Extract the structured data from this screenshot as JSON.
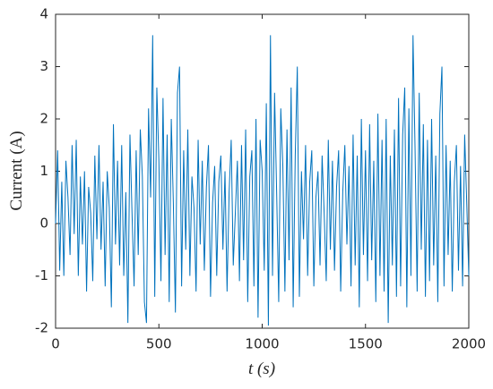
{
  "chart_data": {
    "type": "line",
    "xlabel": "t (s)",
    "ylabel": "Current (A)",
    "x": [
      0,
      10,
      20,
      30,
      40,
      50,
      60,
      70,
      80,
      90,
      100,
      110,
      120,
      130,
      140,
      150,
      160,
      170,
      180,
      190,
      200,
      210,
      220,
      230,
      240,
      250,
      260,
      270,
      280,
      290,
      300,
      310,
      320,
      330,
      340,
      350,
      360,
      370,
      380,
      390,
      400,
      410,
      420,
      430,
      440,
      450,
      460,
      470,
      480,
      490,
      500,
      510,
      520,
      530,
      540,
      550,
      560,
      570,
      580,
      590,
      600,
      610,
      620,
      630,
      640,
      650,
      660,
      670,
      680,
      690,
      700,
      710,
      720,
      730,
      740,
      750,
      760,
      770,
      780,
      790,
      800,
      810,
      820,
      830,
      840,
      850,
      860,
      870,
      880,
      890,
      900,
      910,
      920,
      930,
      940,
      950,
      960,
      970,
      980,
      990,
      1000,
      1010,
      1020,
      1030,
      1040,
      1050,
      1060,
      1070,
      1080,
      1090,
      1100,
      1110,
      1120,
      1130,
      1140,
      1150,
      1160,
      1170,
      1180,
      1190,
      1200,
      1210,
      1220,
      1230,
      1240,
      1250,
      1260,
      1270,
      1280,
      1290,
      1300,
      1310,
      1320,
      1330,
      1340,
      1350,
      1360,
      1370,
      1380,
      1390,
      1400,
      1410,
      1420,
      1430,
      1440,
      1450,
      1460,
      1470,
      1480,
      1490,
      1500,
      1510,
      1520,
      1530,
      1540,
      1550,
      1560,
      1570,
      1580,
      1590,
      1600,
      1610,
      1620,
      1630,
      1640,
      1650,
      1660,
      1670,
      1680,
      1690,
      1700,
      1710,
      1720,
      1730,
      1740,
      1750,
      1760,
      1770,
      1780,
      1790,
      1800,
      1810,
      1820,
      1830,
      1840,
      1850,
      1860,
      1870,
      1880,
      1890,
      1900,
      1910,
      1920,
      1930,
      1940,
      1950,
      1960,
      1970,
      1980,
      1990,
      2000
    ],
    "series": [
      {
        "color": "#0072bd",
        "values": [
          0,
          1.4,
          -0.9,
          0.8,
          -1.0,
          1.2,
          0.5,
          -0.6,
          1.5,
          -0.2,
          1.6,
          -1.0,
          0.9,
          -0.4,
          1.0,
          -1.3,
          0.7,
          0.2,
          -1.1,
          1.3,
          -0.3,
          1.5,
          -0.5,
          0.8,
          -1.2,
          1.0,
          0.3,
          -1.6,
          1.9,
          -0.4,
          1.2,
          -0.8,
          1.5,
          -1.0,
          0.6,
          -1.9,
          1.7,
          0.2,
          -1.2,
          1.4,
          -0.6,
          1.8,
          0.9,
          -1.5,
          -1.9,
          2.2,
          0.5,
          3.6,
          -1.4,
          2.6,
          1.2,
          -1.1,
          2.4,
          -0.6,
          1.7,
          -1.5,
          2.0,
          0.4,
          -1.7,
          2.5,
          3.0,
          -1.2,
          1.4,
          -0.5,
          1.8,
          -1.0,
          0.9,
          0.3,
          -1.3,
          1.6,
          -0.4,
          1.2,
          -0.9,
          0.7,
          1.5,
          -1.4,
          0.4,
          1.1,
          -1.0,
          0.8,
          1.3,
          -0.5,
          1.0,
          -1.3,
          0.6,
          1.6,
          -0.8,
          0.2,
          1.2,
          -1.1,
          1.5,
          -0.7,
          1.8,
          -1.5,
          0.9,
          1.4,
          -1.2,
          2.0,
          -1.8,
          1.6,
          1.0,
          -0.9,
          2.3,
          -1.95,
          3.6,
          -1.0,
          2.5,
          0.6,
          -1.5,
          2.2,
          1.1,
          -1.3,
          1.8,
          -0.7,
          2.6,
          -1.6,
          1.3,
          3.0,
          -1.4,
          1.0,
          -0.3,
          1.5,
          -1.0,
          0.8,
          1.4,
          -1.2,
          0.5,
          1.0,
          -0.8,
          1.3,
          0.2,
          -1.1,
          1.6,
          -0.5,
          1.2,
          -0.9,
          0.7,
          1.4,
          -1.3,
          0.6,
          1.5,
          -0.4,
          1.1,
          -1.2,
          1.7,
          -0.8,
          1.3,
          -1.6,
          2.0,
          -0.6,
          1.4,
          -1.1,
          1.9,
          -0.7,
          1.2,
          -1.5,
          2.1,
          -1.0,
          1.6,
          -1.3,
          2.0,
          -1.9,
          1.3,
          -0.8,
          1.8,
          -1.4,
          2.4,
          -1.2,
          1.7,
          2.6,
          -1.6,
          2.2,
          -1.0,
          3.6,
          1.4,
          -1.3,
          2.5,
          -0.5,
          1.9,
          -1.4,
          1.6,
          -1.1,
          2.0,
          -0.8,
          1.3,
          -1.5,
          2.1,
          3.0,
          -1.2,
          1.5,
          -0.6,
          1.2,
          -1.3,
          0.8,
          1.5,
          -0.9,
          1.1,
          -1.2,
          1.7,
          0.4,
          -1.0
        ]
      }
    ],
    "xlim": [
      0,
      2000
    ],
    "xticks": [
      0,
      500,
      1000,
      1500,
      2000
    ],
    "ylim": [
      -2,
      4
    ],
    "yticks": [
      -2,
      -1,
      0,
      1,
      2,
      3,
      4
    ]
  }
}
